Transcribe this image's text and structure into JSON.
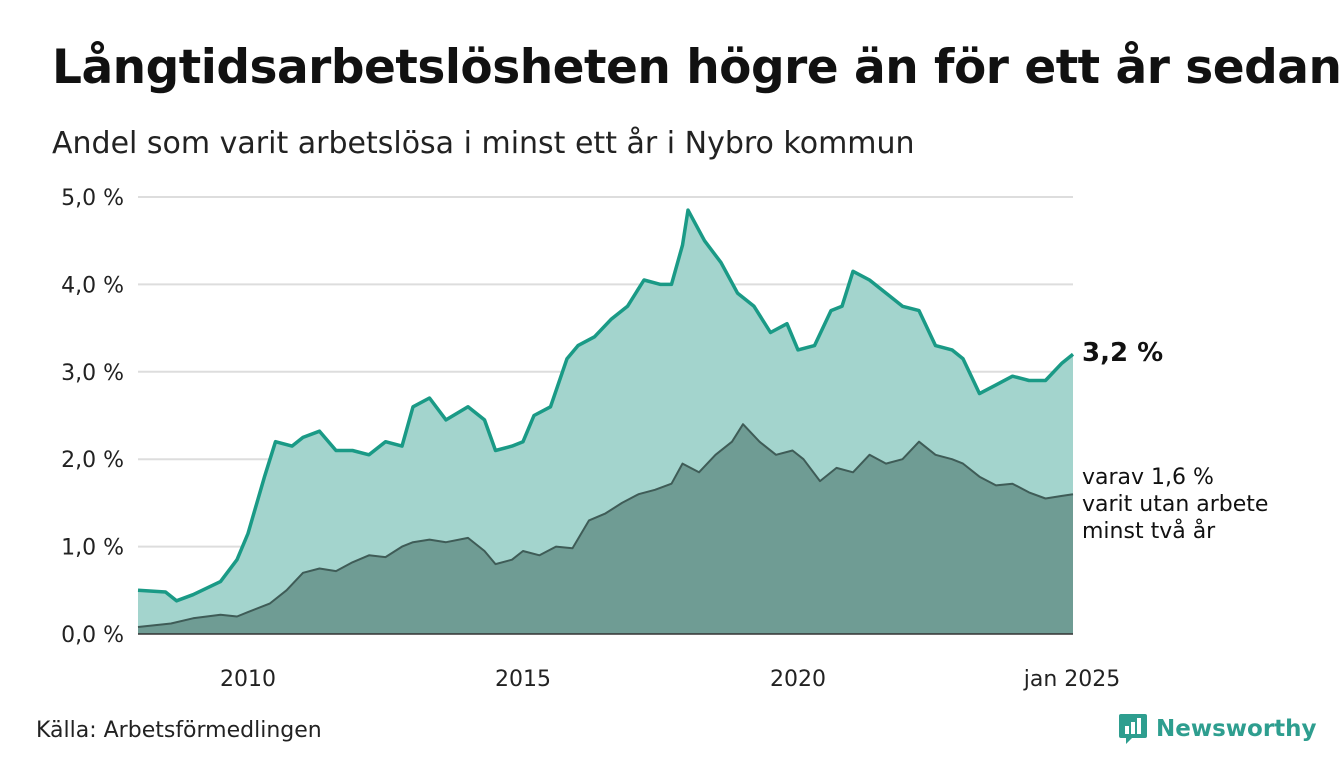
{
  "title": "Långtidsarbetslösheten högre än för ett år sedan",
  "subtitle": "Andel som varit arbetslösa i minst ett år i Nybro kommun",
  "source": "Källa: Arbetsförmedlingen",
  "brand": {
    "name": "Newsworthy",
    "icon": "bar-chart-speech-bubble-icon"
  },
  "colors": {
    "area_one_year": "#a3d4cd",
    "line_one_year": "#1a9a86",
    "area_two_year": "#6f9c94",
    "line_two_year": "#3f5c57",
    "grid": "#dddddd",
    "brand": "#2e9e8f"
  },
  "chart_data": {
    "type": "area",
    "x_tick_labels": [
      "2010",
      "2015",
      "2020",
      "jan 2025"
    ],
    "x_ticks": [
      2010,
      2015,
      2020,
      2025
    ],
    "xlim": [
      2008.0,
      2025.0
    ],
    "ylim": [
      0,
      5
    ],
    "y_ticks": [
      0,
      1,
      2,
      3,
      4,
      5
    ],
    "y_tick_labels": [
      "0,0 %",
      "1,0 %",
      "2,0 %",
      "3,0 %",
      "4,0 %",
      "5,0 %"
    ],
    "grid": true,
    "annotations": {
      "last_value": "3,2 %",
      "sub_label": [
        "varav 1,6 %",
        "varit utan arbete",
        "minst två år"
      ]
    },
    "series": [
      {
        "key": "one_year",
        "x": [
          2008.0,
          2008.5,
          2008.7,
          2009.0,
          2009.5,
          2009.8,
          2010.0,
          2010.3,
          2010.5,
          2010.8,
          2011.0,
          2011.3,
          2011.6,
          2011.9,
          2012.2,
          2012.5,
          2012.8,
          2013.0,
          2013.3,
          2013.6,
          2014.0,
          2014.3,
          2014.5,
          2014.8,
          2015.0,
          2015.2,
          2015.5,
          2015.8,
          2016.0,
          2016.3,
          2016.6,
          2016.9,
          2017.2,
          2017.5,
          2017.7,
          2017.9,
          2018.0,
          2018.3,
          2018.6,
          2018.9,
          2019.2,
          2019.5,
          2019.8,
          2020.0,
          2020.3,
          2020.6,
          2020.8,
          2021.0,
          2021.3,
          2021.6,
          2021.9,
          2022.2,
          2022.5,
          2022.8,
          2023.0,
          2023.3,
          2023.6,
          2023.9,
          2024.2,
          2024.5,
          2024.8,
          2025.0
        ],
        "values": [
          0.5,
          0.48,
          0.38,
          0.45,
          0.6,
          0.85,
          1.15,
          1.8,
          2.2,
          2.15,
          2.25,
          2.32,
          2.1,
          2.1,
          2.05,
          2.2,
          2.15,
          2.6,
          2.7,
          2.45,
          2.6,
          2.45,
          2.1,
          2.15,
          2.2,
          2.5,
          2.6,
          3.15,
          3.3,
          3.4,
          3.6,
          3.75,
          4.05,
          4.0,
          4.0,
          4.45,
          4.85,
          4.5,
          4.25,
          3.9,
          3.75,
          3.45,
          3.55,
          3.25,
          3.3,
          3.7,
          3.75,
          4.15,
          4.05,
          3.9,
          3.75,
          3.7,
          3.3,
          3.25,
          3.15,
          2.75,
          2.85,
          2.95,
          2.9,
          2.9,
          3.1,
          3.2
        ]
      },
      {
        "key": "two_year",
        "x": [
          2008.0,
          2008.3,
          2008.6,
          2009.0,
          2009.5,
          2009.8,
          2010.0,
          2010.4,
          2010.7,
          2011.0,
          2011.3,
          2011.6,
          2011.9,
          2012.2,
          2012.5,
          2012.8,
          2013.0,
          2013.3,
          2013.6,
          2014.0,
          2014.3,
          2014.5,
          2014.8,
          2015.0,
          2015.3,
          2015.6,
          2015.9,
          2016.2,
          2016.5,
          2016.8,
          2017.1,
          2017.4,
          2017.7,
          2017.9,
          2018.2,
          2018.5,
          2018.8,
          2019.0,
          2019.3,
          2019.6,
          2019.9,
          2020.1,
          2020.4,
          2020.7,
          2021.0,
          2021.3,
          2021.6,
          2021.9,
          2022.2,
          2022.5,
          2022.8,
          2023.0,
          2023.3,
          2023.6,
          2023.9,
          2024.2,
          2024.5,
          2024.8,
          2025.0
        ],
        "values": [
          0.08,
          0.1,
          0.12,
          0.18,
          0.22,
          0.2,
          0.25,
          0.35,
          0.5,
          0.7,
          0.75,
          0.72,
          0.82,
          0.9,
          0.88,
          1.0,
          1.05,
          1.08,
          1.05,
          1.1,
          0.95,
          0.8,
          0.85,
          0.95,
          0.9,
          1.0,
          0.98,
          1.3,
          1.38,
          1.5,
          1.6,
          1.65,
          1.72,
          1.95,
          1.85,
          2.05,
          2.2,
          2.4,
          2.2,
          2.05,
          2.1,
          2.0,
          1.75,
          1.9,
          1.85,
          2.05,
          1.95,
          2.0,
          2.2,
          2.05,
          2.0,
          1.95,
          1.8,
          1.7,
          1.72,
          1.62,
          1.55,
          1.58,
          1.6
        ]
      }
    ]
  }
}
